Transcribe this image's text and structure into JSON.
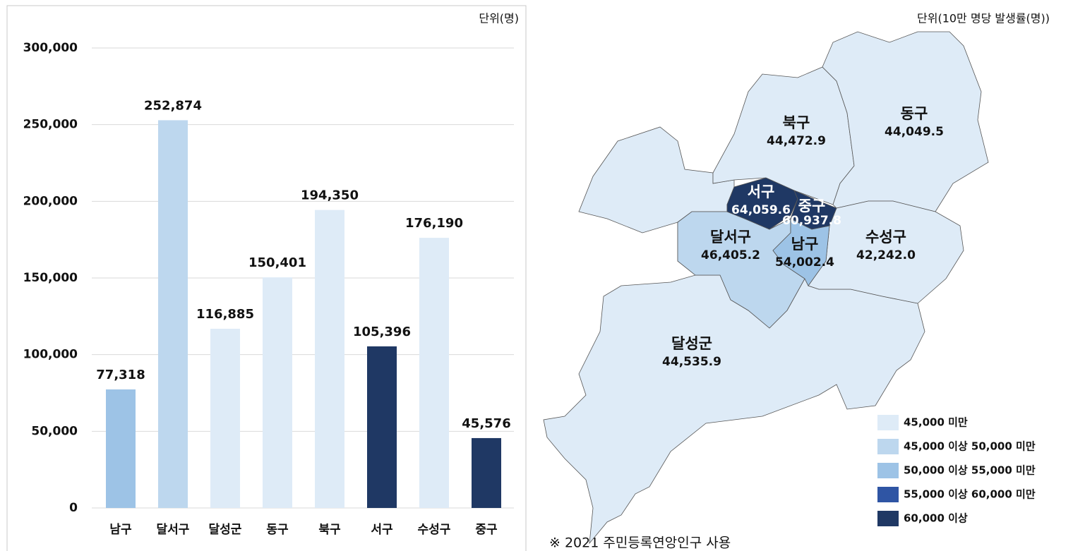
{
  "chart_data": [
    {
      "type": "bar",
      "unit_label": "단위(명)",
      "categories": [
        "남구",
        "달서구",
        "달성군",
        "동구",
        "북구",
        "서구",
        "수성구",
        "중구"
      ],
      "values": [
        77318,
        252874,
        116885,
        150401,
        194350,
        105396,
        176190,
        45576
      ],
      "value_labels": [
        "77,318",
        "252,874",
        "116,885",
        "150,401",
        "194,350",
        "105,396",
        "176,190",
        "45,576"
      ],
      "colors": [
        "#9dc3e6",
        "#bdd7ee",
        "#deebf7",
        "#deebf7",
        "#deebf7",
        "#1f3864",
        "#deebf7",
        "#1f3864"
      ],
      "ylim": [
        0,
        300000
      ],
      "yticks": [
        0,
        {
          "value": 50000,
          "label": "50,000"
        },
        {
          "value": 100000,
          "label": "100,000"
        },
        {
          "value": 150000,
          "label": "150,000"
        },
        {
          "value": 200000,
          "label": "200,000"
        },
        {
          "value": 250000,
          "label": "250,000"
        },
        {
          "value": 300000,
          "label": "300,000"
        }
      ],
      "grid": true
    },
    {
      "type": "map",
      "unit_label": "단위(10만 명당 발생률(명))",
      "categories": [
        "북구",
        "동구",
        "서구",
        "중구",
        "남구",
        "달서구",
        "수성구",
        "달성군"
      ],
      "values": [
        44472.9,
        44049.5,
        64059.6,
        60937.8,
        54002.4,
        46405.2,
        42242.0,
        44535.9
      ],
      "value_labels": [
        "44,472.9",
        "44,049.5",
        "64,059.6",
        "60,937.8",
        "54,002.4",
        "46,405.2",
        "42,242.0",
        "44,535.9"
      ],
      "colors": [
        "#deebf7",
        "#deebf7",
        "#1f3864",
        "#1f3864",
        "#9dc3e6",
        "#bdd7ee",
        "#deebf7",
        "#deebf7"
      ],
      "legend": [
        {
          "label": "45,000 미만",
          "color": "#deebf7"
        },
        {
          "label": "45,000 이상 50,000 미만",
          "color": "#bdd7ee"
        },
        {
          "label": "50,000 이상 55,000 미만",
          "color": "#9dc3e6"
        },
        {
          "label": "55,000 이상 60,000 미만",
          "color": "#2f55a4"
        },
        {
          "label": "60,000 이상",
          "color": "#1f3864"
        }
      ],
      "note": "※ 2021 주민등록연앙인구 사용"
    }
  ]
}
